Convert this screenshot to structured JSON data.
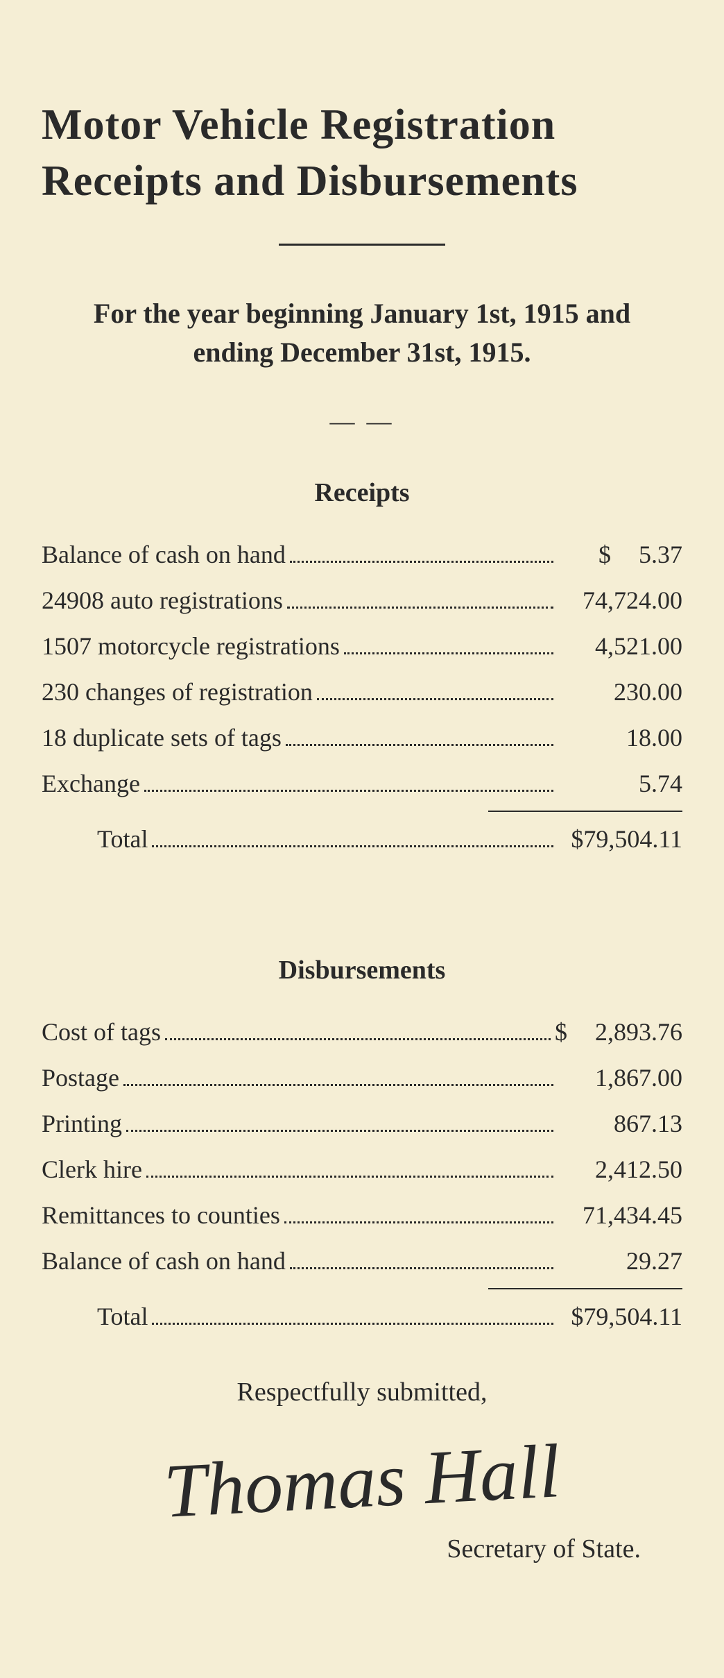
{
  "title": "Motor Vehicle Registration Receipts and Disbursements",
  "subtitle": "For the year beginning January 1st, 1915 and ending December 31st, 1915.",
  "receipts": {
    "heading": "Receipts",
    "items": [
      {
        "label": "Balance of cash on hand",
        "currency": "$",
        "value": "5.37"
      },
      {
        "label": "24908 auto registrations",
        "currency": "",
        "value": "74,724.00"
      },
      {
        "label": "1507 motorcycle registrations",
        "currency": "",
        "value": "4,521.00"
      },
      {
        "label": "230 changes of registration",
        "currency": "",
        "value": "230.00"
      },
      {
        "label": "18 duplicate sets of tags",
        "currency": "",
        "value": "18.00"
      },
      {
        "label": "Exchange",
        "currency": "",
        "value": "5.74"
      }
    ],
    "total_label": "Total",
    "total_value": "$79,504.11"
  },
  "disbursements": {
    "heading": "Disbursements",
    "items": [
      {
        "label": "Cost of tags",
        "currency": "$",
        "value": "2,893.76"
      },
      {
        "label": "Postage",
        "currency": "",
        "value": "1,867.00"
      },
      {
        "label": "Printing",
        "currency": "",
        "value": "867.13"
      },
      {
        "label": "Clerk hire",
        "currency": "",
        "value": "2,412.50"
      },
      {
        "label": "Remittances to counties",
        "currency": "",
        "value": "71,434.45"
      },
      {
        "label": "Balance of cash on hand",
        "currency": "",
        "value": "29.27"
      }
    ],
    "total_label": "Total",
    "total_value": "$79,504.11"
  },
  "closing": "Respectfully submitted,",
  "signature_name": "Thomas Hall",
  "signature_title": "Secretary of State.",
  "colors": {
    "background": "#f5eed5",
    "text": "#2a2a2a"
  },
  "typography": {
    "title_fontsize": 62,
    "subtitle_fontsize": 40,
    "heading_fontsize": 38,
    "body_fontsize": 36,
    "signature_fontsize": 110
  }
}
